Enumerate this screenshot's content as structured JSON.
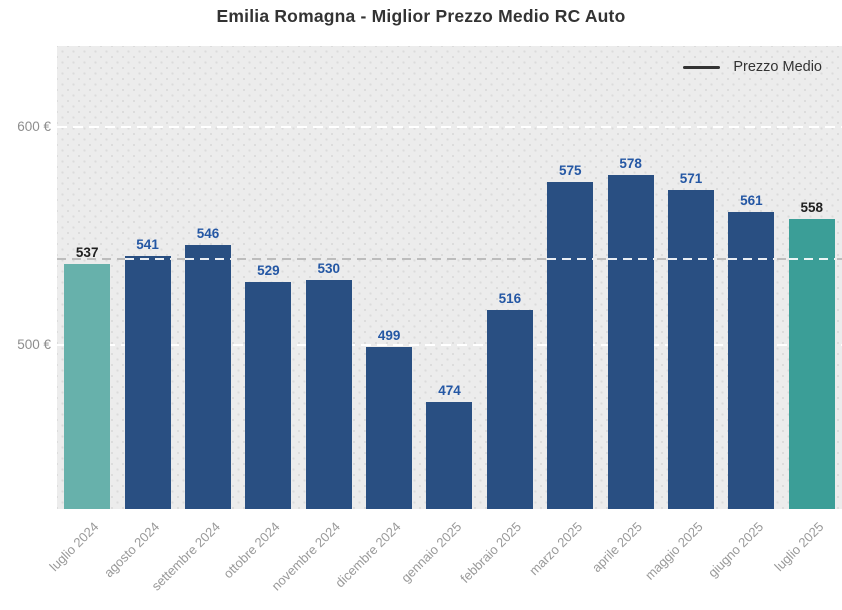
{
  "title": "Emilia Romagna - Miglior Prezzo Medio RC Auto",
  "legend": {
    "label": "Prezzo Medio",
    "line_color": "#333333"
  },
  "chart_data": {
    "type": "bar",
    "title": "Emilia Romagna - Miglior Prezzo Medio RC Auto",
    "categories": [
      "luglio 2024",
      "agosto 2024",
      "settembre 2024",
      "ottobre 2024",
      "novembre 2024",
      "dicembre 2024",
      "gennaio 2025",
      "febbraio 2025",
      "marzo 2025",
      "aprile 2025",
      "maggio 2025",
      "giugno 2025",
      "luglio 2025"
    ],
    "values": [
      537,
      541,
      546,
      529,
      530,
      499,
      474,
      516,
      575,
      578,
      571,
      561,
      558
    ],
    "value_unit": "€",
    "xlabel": "",
    "ylabel": "",
    "ylim": [
      424.8,
      637.2
    ],
    "y_ticks": [
      {
        "value": 500,
        "label": "500 €"
      },
      {
        "value": 600,
        "label": "600 €"
      }
    ],
    "mean_value": 539.6,
    "grid": "dashed-white-horizontal",
    "legend_position": "top-right",
    "plot_background": "#ececec",
    "bar_colors": [
      "#67b1ab",
      "#294f82",
      "#294f82",
      "#294f82",
      "#294f82",
      "#294f82",
      "#294f82",
      "#294f82",
      "#294f82",
      "#294f82",
      "#294f82",
      "#294f82",
      "#3b9e97"
    ],
    "value_label_colors": [
      "#1f1f1f",
      "#2457a4",
      "#2457a4",
      "#2457a4",
      "#2457a4",
      "#2457a4",
      "#2457a4",
      "#2457a4",
      "#2457a4",
      "#2457a4",
      "#2457a4",
      "#2457a4",
      "#1f1f1f"
    ],
    "gridline_color": "#ffffff",
    "mean_line_color": "#bcbcbc",
    "axis_text_color": "#999999"
  }
}
